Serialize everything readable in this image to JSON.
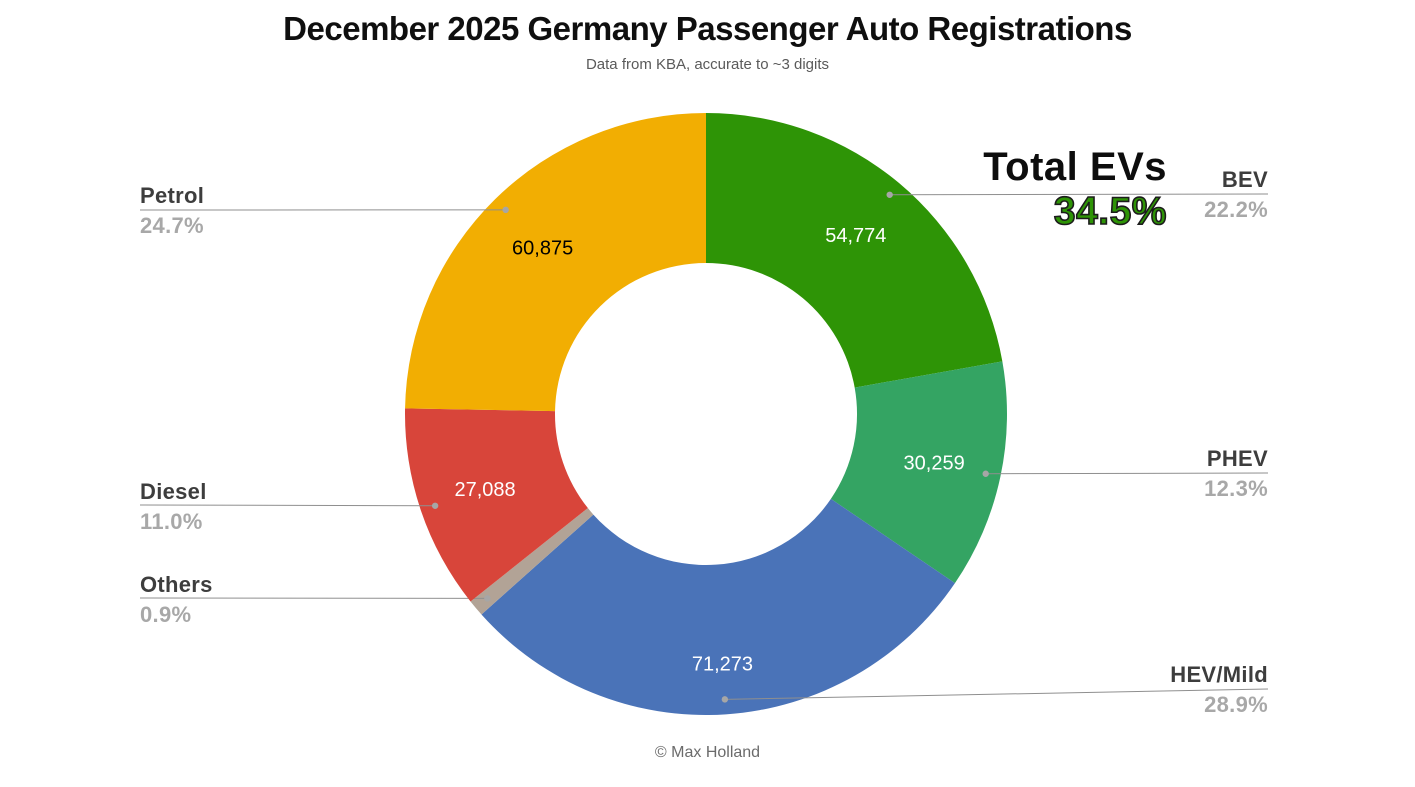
{
  "header": {
    "title": "December 2025 Germany Passenger Auto Registrations",
    "subtitle": "Data from KBA, accurate to ~3 digits"
  },
  "footer": {
    "credit": "© Max Holland"
  },
  "total_evs": {
    "label": "Total EVs",
    "pct_label": "34.5%",
    "color": "#2e9406"
  },
  "style": {
    "leader_line_color": "#8f8f8f",
    "leader_dot_color": "#a6a6a6",
    "label_name_color": "#3d3d3d",
    "label_pct_color": "#a8a8a8"
  },
  "chart_data": {
    "type": "pie",
    "donut": true,
    "title": "December 2025 Germany Passenger Auto Registrations",
    "subtitle": "Data from KBA, accurate to ~3 digits",
    "units": "registrations",
    "start_angle_deg": 0,
    "direction": "clockwise",
    "legend_position": "callout-labels",
    "slices": [
      {
        "label": "BEV",
        "pct": 22.2,
        "pct_label": "22.2%",
        "count": 54774,
        "count_label": "54,774",
        "color": "#2e9406",
        "value_text_color": "#ffffff",
        "side": "right"
      },
      {
        "label": "PHEV",
        "pct": 12.3,
        "pct_label": "12.3%",
        "count": 30259,
        "count_label": "30,259",
        "color": "#34a463",
        "value_text_color": "#ffffff",
        "side": "right"
      },
      {
        "label": "HEV/Mild",
        "pct": 28.9,
        "pct_label": "28.9%",
        "count": 71273,
        "count_label": "71,273",
        "color": "#4a73b8",
        "value_text_color": "#ffffff",
        "side": "right"
      },
      {
        "label": "Others",
        "pct": 0.9,
        "pct_label": "0.9%",
        "count_label": "",
        "color": "#b2a396",
        "value_text_color": "#ffffff",
        "side": "left"
      },
      {
        "label": "Diesel",
        "pct": 11.0,
        "pct_label": "11.0%",
        "count": 27088,
        "count_label": "27,088",
        "color": "#d8453a",
        "value_text_color": "#ffffff",
        "side": "left"
      },
      {
        "label": "Petrol",
        "pct": 24.7,
        "pct_label": "24.7%",
        "count": 60875,
        "count_label": "60,875",
        "color": "#f2ae02",
        "value_text_color": "#000000",
        "side": "left"
      }
    ],
    "annotations": [
      {
        "text": "Total EVs",
        "value": "34.5%"
      }
    ],
    "credit": "© Max Holland"
  }
}
